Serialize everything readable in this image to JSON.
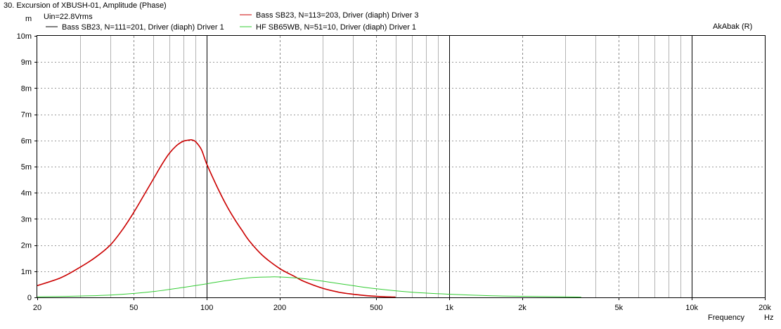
{
  "window_title": "30. Excursion of XBUSH-01, Amplitude (Phase)",
  "drive_label": "Uin=22.8Vrms",
  "brand": "AkAbak (R)",
  "chart_data": {
    "type": "line",
    "title": "30. Excursion of XBUSH-01, Amplitude (Phase)",
    "xlabel": "Frequency",
    "x_unit": "Hz",
    "y_unit": "m",
    "xscale": "log",
    "xlim": [
      20,
      20000
    ],
    "ylim": [
      0,
      10
    ],
    "grid": true,
    "x_ticks": [
      {
        "v": 20,
        "label": "20"
      },
      {
        "v": 50,
        "label": "50"
      },
      {
        "v": 100,
        "label": "100"
      },
      {
        "v": 200,
        "label": "200"
      },
      {
        "v": 500,
        "label": "500"
      },
      {
        "v": 1000,
        "label": "1k"
      },
      {
        "v": 2000,
        "label": "2k"
      },
      {
        "v": 5000,
        "label": "5k"
      },
      {
        "v": 10000,
        "label": "10k"
      },
      {
        "v": 20000,
        "label": "20k"
      }
    ],
    "y_ticks": [
      {
        "v": 0,
        "label": "0"
      },
      {
        "v": 1,
        "label": "1m"
      },
      {
        "v": 2,
        "label": "2m"
      },
      {
        "v": 3,
        "label": "3m"
      },
      {
        "v": 4,
        "label": "4m"
      },
      {
        "v": 5,
        "label": "5m"
      },
      {
        "v": 6,
        "label": "6m"
      },
      {
        "v": 7,
        "label": "7m"
      },
      {
        "v": 8,
        "label": "8m"
      },
      {
        "v": 9,
        "label": "9m"
      },
      {
        "v": 10,
        "label": "10m"
      }
    ],
    "series": [
      {
        "name": "Bass SB23, N=111=201, Driver (diaph) Driver 1",
        "color": "#000000",
        "x": [
          20,
          25,
          30,
          35,
          40,
          45,
          50,
          55,
          60,
          65,
          70,
          75,
          80,
          85,
          87,
          90,
          95,
          100,
          110,
          120,
          130,
          140,
          150,
          170,
          200,
          230,
          250,
          300,
          350,
          400,
          450,
          500,
          550,
          600
        ],
        "y": [
          0.45,
          0.75,
          1.15,
          1.55,
          2.0,
          2.6,
          3.25,
          3.9,
          4.5,
          5.05,
          5.5,
          5.8,
          5.97,
          6.02,
          6.02,
          5.95,
          5.65,
          5.1,
          4.25,
          3.55,
          3.0,
          2.55,
          2.15,
          1.6,
          1.1,
          0.8,
          0.62,
          0.35,
          0.2,
          0.12,
          0.07,
          0.04,
          0.02,
          0.01
        ]
      },
      {
        "name": "Bass SB23, N=113=203, Driver (diaph) Driver 3",
        "color": "#cc0000",
        "x": [
          20,
          25,
          30,
          35,
          40,
          45,
          50,
          55,
          60,
          65,
          70,
          75,
          80,
          85,
          87,
          90,
          95,
          100,
          110,
          120,
          130,
          140,
          150,
          170,
          200,
          230,
          250,
          300,
          350,
          400,
          450,
          500,
          550,
          600
        ],
        "y": [
          0.45,
          0.75,
          1.15,
          1.55,
          2.0,
          2.6,
          3.25,
          3.9,
          4.5,
          5.05,
          5.5,
          5.8,
          5.97,
          6.02,
          6.02,
          5.95,
          5.65,
          5.1,
          4.25,
          3.55,
          3.0,
          2.55,
          2.15,
          1.6,
          1.1,
          0.8,
          0.62,
          0.35,
          0.2,
          0.12,
          0.07,
          0.04,
          0.02,
          0.01
        ]
      },
      {
        "name": "HF SB65WB, N=51=10, Driver (diaph) Driver 1",
        "color": "#33cc33",
        "x": [
          20,
          30,
          40,
          50,
          60,
          80,
          100,
          120,
          150,
          180,
          200,
          250,
          300,
          400,
          500,
          700,
          1000,
          1500,
          2000,
          3000,
          3500
        ],
        "y": [
          0.02,
          0.05,
          0.09,
          0.15,
          0.22,
          0.38,
          0.52,
          0.64,
          0.75,
          0.78,
          0.78,
          0.72,
          0.62,
          0.45,
          0.33,
          0.2,
          0.12,
          0.06,
          0.04,
          0.02,
          0.01
        ]
      }
    ]
  }
}
